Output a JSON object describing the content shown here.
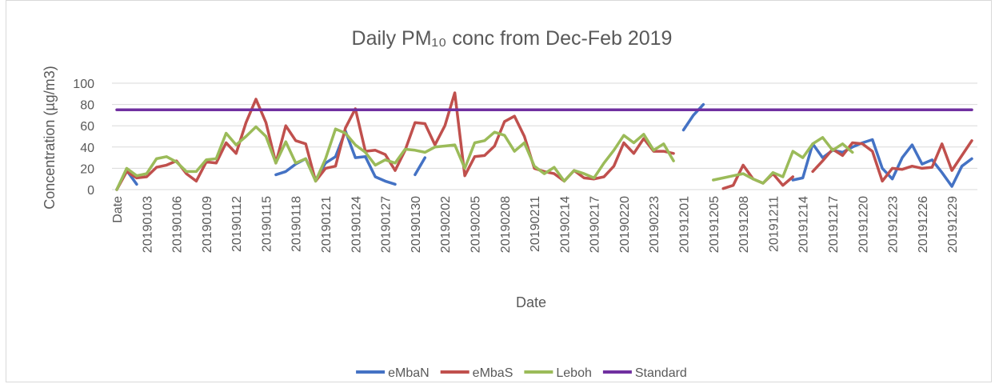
{
  "chart_data": {
    "type": "line",
    "title": "Daily PM₁₀ conc from Dec-Feb 2019",
    "x_label": "Date",
    "y_label": "Concentration (µg/m3)",
    "ylim": [
      0,
      100
    ],
    "yticks": [
      0,
      20,
      40,
      60,
      80,
      100
    ],
    "grid": true,
    "legend": "bottom",
    "categories": [
      "Date",
      null,
      null,
      "20190103",
      null,
      null,
      "20190106",
      null,
      null,
      "20190109",
      null,
      null,
      "20190112",
      null,
      null,
      "20190115",
      null,
      null,
      "20190118",
      null,
      null,
      "20190121",
      null,
      null,
      "20190124",
      null,
      null,
      "20190127",
      null,
      null,
      "20190130",
      null,
      null,
      "20190202",
      null,
      null,
      "20190205",
      null,
      null,
      "20190208",
      null,
      null,
      "20190211",
      null,
      null,
      "20190214",
      null,
      null,
      "20190217",
      null,
      null,
      "20190220",
      null,
      null,
      "20190223",
      null,
      null,
      "20191201",
      null,
      null,
      "20191205",
      null,
      null,
      "20191208",
      null,
      null,
      "20191211",
      null,
      null,
      "20191214",
      null,
      null,
      "20191217",
      null,
      null,
      "20191220",
      null,
      null,
      "20191223",
      null,
      null,
      "20191226",
      null,
      null,
      "20191229",
      null,
      null
    ],
    "series": [
      {
        "name": "eMbaN",
        "color": "#4472c4",
        "values": [
          0,
          18,
          5,
          null,
          null,
          null,
          null,
          null,
          null,
          null,
          null,
          null,
          null,
          null,
          null,
          null,
          14,
          17,
          24,
          29,
          9,
          25,
          31,
          55,
          30,
          31,
          12,
          8,
          5,
          null,
          14,
          30,
          null,
          null,
          null,
          null,
          null,
          null,
          null,
          null,
          null,
          null,
          null,
          null,
          null,
          null,
          null,
          null,
          null,
          null,
          null,
          null,
          null,
          null,
          null,
          null,
          null,
          56,
          70,
          80,
          null,
          null,
          null,
          null,
          null,
          null,
          null,
          null,
          9,
          11,
          43,
          30,
          37,
          35,
          40,
          44,
          47,
          20,
          10,
          30,
          42,
          24,
          28,
          16,
          3,
          22,
          29
        ]
      },
      {
        "name": "eMbaS",
        "color": "#c0504d",
        "values": [
          0,
          17,
          11,
          12,
          21,
          23,
          27,
          15,
          8,
          26,
          25,
          44,
          34,
          63,
          85,
          63,
          25,
          60,
          46,
          43,
          8,
          20,
          22,
          58,
          76,
          36,
          37,
          33,
          18,
          37,
          63,
          62,
          42,
          60,
          91,
          13,
          31,
          32,
          41,
          64,
          69,
          50,
          20,
          17,
          15,
          8,
          18,
          11,
          10,
          12,
          22,
          44,
          34,
          48,
          36,
          36,
          34,
          null,
          null,
          null,
          null,
          1,
          4,
          23,
          10,
          6,
          15,
          4,
          12,
          null,
          17,
          27,
          38,
          32,
          44,
          43,
          36,
          8,
          20,
          19,
          22,
          20,
          21,
          43,
          18,
          32,
          46
        ]
      },
      {
        "name": "Leboh",
        "color": "#9bbb59",
        "values": [
          0,
          20,
          13,
          15,
          29,
          31,
          26,
          17,
          17,
          28,
          29,
          53,
          42,
          50,
          59,
          50,
          25,
          45,
          25,
          29,
          8,
          29,
          57,
          53,
          42,
          35,
          23,
          28,
          25,
          38,
          37,
          35,
          40,
          41,
          42,
          20,
          44,
          46,
          54,
          51,
          36,
          44,
          22,
          15,
          21,
          8,
          18,
          15,
          11,
          25,
          37,
          51,
          44,
          52,
          37,
          43,
          27,
          null,
          null,
          null,
          9,
          11,
          13,
          15,
          10,
          6,
          16,
          12,
          36,
          30,
          43,
          49,
          37,
          43,
          35,
          null,
          null,
          null,
          null,
          null,
          null,
          null,
          null,
          null,
          null,
          null,
          null
        ]
      },
      {
        "name": "Standard",
        "color": "#7030a0",
        "values": [
          75,
          75,
          75,
          75,
          75,
          75,
          75,
          75,
          75,
          75,
          75,
          75,
          75,
          75,
          75,
          75,
          75,
          75,
          75,
          75,
          75,
          75,
          75,
          75,
          75,
          75,
          75,
          75,
          75,
          75,
          75,
          75,
          75,
          75,
          75,
          75,
          75,
          75,
          75,
          75,
          75,
          75,
          75,
          75,
          75,
          75,
          75,
          75,
          75,
          75,
          75,
          75,
          75,
          75,
          75,
          75,
          75,
          75,
          75,
          75,
          75,
          75,
          75,
          75,
          75,
          75,
          75,
          75,
          75,
          75,
          75,
          75,
          75,
          75,
          75,
          75,
          75,
          75,
          75,
          75,
          75,
          75,
          75,
          75,
          75,
          75,
          75
        ]
      }
    ]
  }
}
